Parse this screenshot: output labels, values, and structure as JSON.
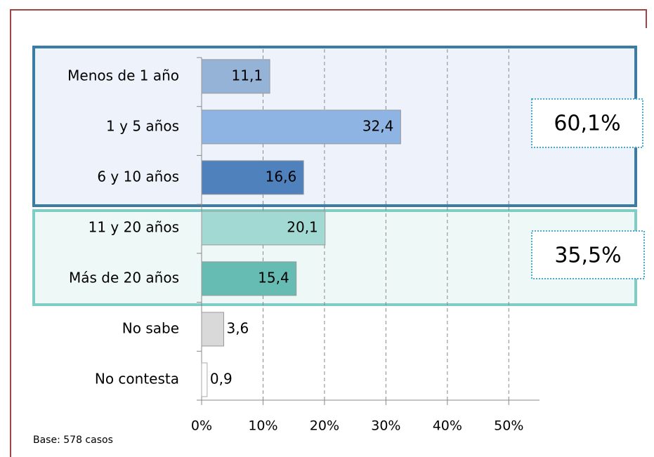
{
  "chart_data": {
    "type": "bar",
    "orientation": "horizontal",
    "categories": [
      "Menos de 1 año",
      "1 y 5 años",
      "6 y 10 años",
      "11 y 20 años",
      "Más de 20 años",
      "No sabe",
      "No contesta"
    ],
    "values": [
      11.1,
      32.4,
      16.6,
      20.1,
      15.4,
      3.6,
      0.9
    ],
    "value_labels": [
      "11,1",
      "32,4",
      "16,6",
      "20,1",
      "15,4",
      "3,6",
      "0,9"
    ],
    "colors": [
      "#95b3d7",
      "#8db4e2",
      "#4f81bd",
      "#a2d9d2",
      "#66bbb3",
      "#d9d9d9",
      "#ffffff"
    ],
    "xlim": [
      0,
      55
    ],
    "xticks": [
      {
        "value": 0,
        "label": "0%"
      },
      {
        "value": 10,
        "label": "10%"
      },
      {
        "value": 20,
        "label": "20%"
      },
      {
        "value": 30,
        "label": "30%"
      },
      {
        "value": 40,
        "label": "40%"
      },
      {
        "value": 50,
        "label": "50%"
      }
    ],
    "grid": true,
    "annotations": [
      "60,1%",
      "35,5%"
    ],
    "note": "Base: 578 casos"
  }
}
